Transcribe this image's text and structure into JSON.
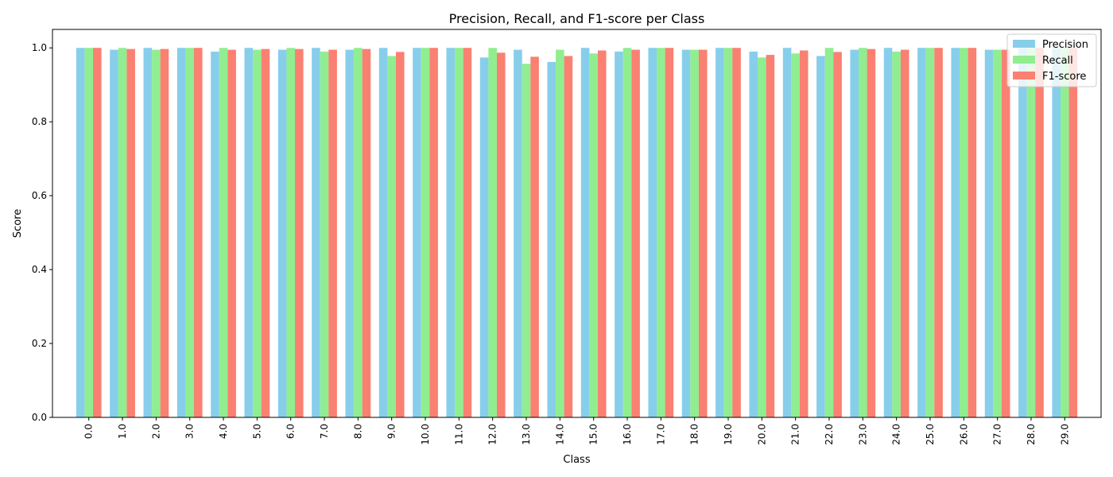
{
  "chart_data": {
    "type": "bar",
    "title": "Precision, Recall, and F1-score per Class",
    "xlabel": "Class",
    "ylabel": "Score",
    "ylim": [
      0,
      1.05
    ],
    "yticks": [
      "0.0",
      "0.2",
      "0.4",
      "0.6",
      "0.8",
      "1.0"
    ],
    "legend_position": "top-right",
    "categories": [
      "0.0",
      "1.0",
      "2.0",
      "3.0",
      "4.0",
      "5.0",
      "6.0",
      "7.0",
      "8.0",
      "9.0",
      "10.0",
      "11.0",
      "12.0",
      "13.0",
      "14.0",
      "15.0",
      "16.0",
      "17.0",
      "18.0",
      "19.0",
      "20.0",
      "21.0",
      "22.0",
      "23.0",
      "24.0",
      "25.0",
      "26.0",
      "27.0",
      "28.0",
      "29.0"
    ],
    "series": [
      {
        "name": "Precision",
        "color": "#87ceeb",
        "values": [
          1.0,
          0.995,
          1.0,
          1.0,
          0.99,
          1.0,
          0.995,
          1.0,
          0.995,
          1.0,
          1.0,
          1.0,
          0.974,
          0.995,
          0.962,
          1.0,
          0.99,
          1.0,
          0.995,
          1.0,
          0.99,
          1.0,
          0.978,
          0.995,
          1.0,
          1.0,
          1.0,
          0.995,
          1.0,
          1.0
        ]
      },
      {
        "name": "Recall",
        "color": "#90ee90",
        "values": [
          1.0,
          1.0,
          0.995,
          1.0,
          1.0,
          0.995,
          1.0,
          0.99,
          1.0,
          0.978,
          1.0,
          1.0,
          1.0,
          0.957,
          0.995,
          0.985,
          1.0,
          1.0,
          0.995,
          1.0,
          0.974,
          0.985,
          1.0,
          1.0,
          0.99,
          1.0,
          1.0,
          0.995,
          1.0,
          1.0
        ]
      },
      {
        "name": "F1-score",
        "color": "#fa8072",
        "values": [
          1.0,
          0.997,
          0.997,
          1.0,
          0.995,
          0.997,
          0.997,
          0.995,
          0.997,
          0.989,
          1.0,
          1.0,
          0.987,
          0.976,
          0.978,
          0.993,
          0.995,
          1.0,
          0.995,
          1.0,
          0.981,
          0.993,
          0.989,
          0.997,
          0.995,
          1.0,
          1.0,
          0.995,
          1.0,
          1.0
        ]
      }
    ]
  }
}
